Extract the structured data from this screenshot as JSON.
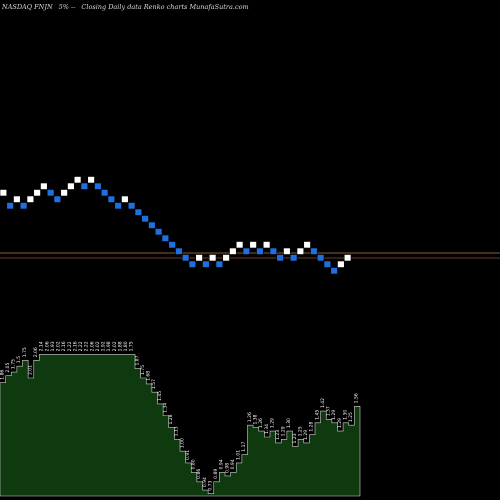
{
  "header": {
    "symbol": "NASDAQ FNJN",
    "change": "5% --",
    "description": "Closing Daily data Renko charts MunafaSutra.com"
  },
  "colors": {
    "background": "#000000",
    "up_brick": "#ffffff",
    "down_brick": "#1e6fe0",
    "brick_outline": "#000000",
    "price_line_upper": "#8b5a2b",
    "price_line_lower": "#6b3a1a",
    "volume_fill": "#0f3a0f",
    "volume_outline": "#d0d0d0",
    "label_text": "#ffffff"
  },
  "chart_data": {
    "type": "renko",
    "price_lines": [
      2.0,
      1.97
    ],
    "bricks": [
      {
        "dir": "up",
        "level": 5
      },
      {
        "dir": "down",
        "level": 3
      },
      {
        "dir": "up",
        "level": 4
      },
      {
        "dir": "down",
        "level": 3
      },
      {
        "dir": "up",
        "level": 4
      },
      {
        "dir": "up",
        "level": 5
      },
      {
        "dir": "up",
        "level": 6
      },
      {
        "dir": "down",
        "level": 5
      },
      {
        "dir": "down",
        "level": 4
      },
      {
        "dir": "up",
        "level": 5
      },
      {
        "dir": "up",
        "level": 6
      },
      {
        "dir": "up",
        "level": 7
      },
      {
        "dir": "down",
        "level": 6
      },
      {
        "dir": "up",
        "level": 7
      },
      {
        "dir": "down",
        "level": 6
      },
      {
        "dir": "down",
        "level": 5
      },
      {
        "dir": "down",
        "level": 4
      },
      {
        "dir": "down",
        "level": 3
      },
      {
        "dir": "up",
        "level": 4
      },
      {
        "dir": "down",
        "level": 3
      },
      {
        "dir": "down",
        "level": 2
      },
      {
        "dir": "down",
        "level": 1
      },
      {
        "dir": "down",
        "level": 0
      },
      {
        "dir": "down",
        "level": -1
      },
      {
        "dir": "down",
        "level": -2
      },
      {
        "dir": "down",
        "level": -3
      },
      {
        "dir": "down",
        "level": -4
      },
      {
        "dir": "down",
        "level": -5
      },
      {
        "dir": "down",
        "level": -6
      },
      {
        "dir": "up",
        "level": -5
      },
      {
        "dir": "down",
        "level": -6
      },
      {
        "dir": "up",
        "level": -5
      },
      {
        "dir": "down",
        "level": -6
      },
      {
        "dir": "up",
        "level": -5
      },
      {
        "dir": "up",
        "level": -4
      },
      {
        "dir": "up",
        "level": -3
      },
      {
        "dir": "down",
        "level": -4
      },
      {
        "dir": "up",
        "level": -3
      },
      {
        "dir": "down",
        "level": -4
      },
      {
        "dir": "up",
        "level": -3
      },
      {
        "dir": "down",
        "level": -4
      },
      {
        "dir": "down",
        "level": -5
      },
      {
        "dir": "up",
        "level": -4
      },
      {
        "dir": "down",
        "level": -5
      },
      {
        "dir": "up",
        "level": -4
      },
      {
        "dir": "up",
        "level": -3
      },
      {
        "dir": "down",
        "level": -4
      },
      {
        "dir": "down",
        "level": -5
      },
      {
        "dir": "down",
        "level": -6
      },
      {
        "dir": "down",
        "level": -7
      },
      {
        "dir": "up",
        "level": -6
      },
      {
        "dir": "up",
        "level": -5
      }
    ],
    "volume": {
      "values": [
        0.96,
        1.02,
        1.05,
        1.1,
        1.15,
        1.0,
        1.15,
        1.2,
        1.2,
        1.2,
        1.2,
        1.2,
        1.2,
        1.2,
        1.2,
        1.2,
        1.2,
        1.2,
        1.2,
        1.2,
        1.2,
        1.2,
        1.2,
        1.2,
        1.08,
        1.0,
        0.95,
        0.88,
        0.78,
        0.68,
        0.58,
        0.48,
        0.38,
        0.28,
        0.2,
        0.12,
        0.05,
        0.02,
        0.12,
        0.2,
        0.17,
        0.2,
        0.28,
        0.35,
        0.6,
        0.58,
        0.55,
        0.5,
        0.55,
        0.45,
        0.48,
        0.55,
        0.42,
        0.48,
        0.45,
        0.52,
        0.62,
        0.72,
        0.65,
        0.62,
        0.55,
        0.62,
        0.6,
        0.76
      ],
      "labels": [
        {
          "bar": 0,
          "text": "1.86"
        },
        {
          "bar": 1,
          "text": "2.05"
        },
        {
          "bar": 2,
          "text": "1.75"
        },
        {
          "bar": 3,
          "text": "1.5"
        },
        {
          "bar": 4,
          "text": "1.75"
        },
        {
          "bar": 5,
          "text": "2.01"
        },
        {
          "bar": 6,
          "text": "2.06"
        },
        {
          "bar": 7,
          "text": "2.14"
        },
        {
          "bar": 8,
          "text": "2.06"
        },
        {
          "bar": 9,
          "text": "1.93"
        },
        {
          "bar": 10,
          "text": "2.02"
        },
        {
          "bar": 11,
          "text": "2.16"
        },
        {
          "bar": 12,
          "text": "2.22"
        },
        {
          "bar": 13,
          "text": "2.16"
        },
        {
          "bar": 14,
          "text": "2.22"
        },
        {
          "bar": 15,
          "text": "2.22"
        },
        {
          "bar": 16,
          "text": "2.06"
        },
        {
          "bar": 17,
          "text": "2.02"
        },
        {
          "bar": 18,
          "text": "1.92"
        },
        {
          "bar": 19,
          "text": "1.98"
        },
        {
          "bar": 20,
          "text": "2.02"
        },
        {
          "bar": 21,
          "text": "1.88"
        },
        {
          "bar": 22,
          "text": "1.80"
        },
        {
          "bar": 23,
          "text": "1.75"
        },
        {
          "bar": 24,
          "text": "1.87"
        },
        {
          "bar": 25,
          "text": "1.75"
        },
        {
          "bar": 26,
          "text": "1.68"
        },
        {
          "bar": 27,
          "text": "1.57"
        },
        {
          "bar": 28,
          "text": "1.45"
        },
        {
          "bar": 29,
          "text": "1.34"
        },
        {
          "bar": 30,
          "text": "1.28"
        },
        {
          "bar": 31,
          "text": "1.13"
        },
        {
          "bar": 32,
          "text": "1.00"
        },
        {
          "bar": 33,
          "text": "0.91"
        },
        {
          "bar": 34,
          "text": "0.80"
        },
        {
          "bar": 35,
          "text": "0.86"
        },
        {
          "bar": 36,
          "text": "0.94"
        },
        {
          "bar": 37,
          "text": "0.73"
        },
        {
          "bar": 38,
          "text": "0.89"
        },
        {
          "bar": 39,
          "text": "0.94"
        },
        {
          "bar": 40,
          "text": "0.98"
        },
        {
          "bar": 41,
          "text": "0.94"
        },
        {
          "bar": 42,
          "text": "1.01"
        },
        {
          "bar": 43,
          "text": "1.17"
        },
        {
          "bar": 44,
          "text": "1.26"
        },
        {
          "bar": 45,
          "text": "1.38"
        },
        {
          "bar": 46,
          "text": "1.26"
        },
        {
          "bar": 47,
          "text": "1.34"
        },
        {
          "bar": 48,
          "text": "1.29"
        },
        {
          "bar": 49,
          "text": "1.23"
        },
        {
          "bar": 50,
          "text": "1.29"
        },
        {
          "bar": 51,
          "text": "1.30"
        },
        {
          "bar": 52,
          "text": "1.23"
        },
        {
          "bar": 53,
          "text": "1.25"
        },
        {
          "bar": 54,
          "text": "1.29"
        },
        {
          "bar": 55,
          "text": "1.28"
        },
        {
          "bar": 56,
          "text": "1.45"
        },
        {
          "bar": 57,
          "text": "1.42"
        },
        {
          "bar": 58,
          "text": "1.37"
        },
        {
          "bar": 59,
          "text": "1.29"
        },
        {
          "bar": 60,
          "text": "1.29"
        },
        {
          "bar": 61,
          "text": "1.30"
        },
        {
          "bar": 62,
          "text": "1.25"
        },
        {
          "bar": 63,
          "text": "1.56"
        }
      ]
    }
  }
}
